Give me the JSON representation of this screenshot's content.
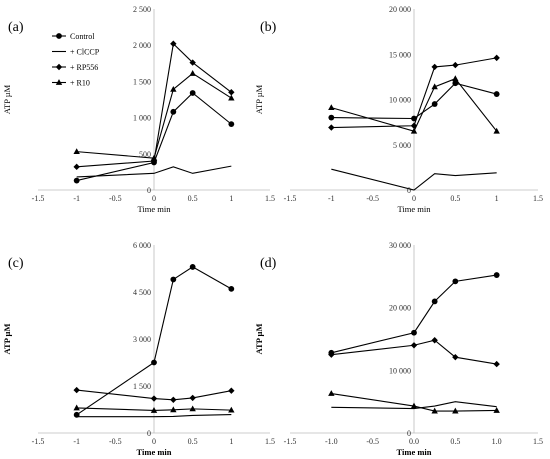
{
  "chart_data": [
    {
      "type": "line",
      "panel_label": "(a)",
      "xlabel": "Time min",
      "ylabel": "ATP µM",
      "xlim": [
        -1.5,
        1.5
      ],
      "ylim": [
        0,
        2500
      ],
      "xticks": [
        "-1.5",
        "-1",
        "-0.5",
        "0",
        "0.5",
        "1",
        "1.5"
      ],
      "yticks": [
        "0",
        "500",
        "1 000",
        "1 500",
        "2 000",
        "2 500"
      ],
      "legend": {
        "placement": "top-left",
        "entries": [
          "Control",
          "+ ClCCP",
          "+ RP556",
          "+ R10"
        ]
      },
      "series": [
        {
          "name": "Control",
          "marker": "circle",
          "x": [
            -1,
            0,
            0.25,
            0.5,
            1
          ],
          "values": [
            130,
            380,
            1080,
            1340,
            910
          ]
        },
        {
          "name": "+ ClCCP",
          "marker": "none",
          "x": [
            -1,
            0,
            0.25,
            0.5,
            1
          ],
          "values": [
            180,
            230,
            320,
            230,
            330
          ]
        },
        {
          "name": "+ RP556",
          "marker": "diamond",
          "x": [
            -1,
            0,
            0.25,
            0.5,
            1
          ],
          "values": [
            320,
            400,
            2020,
            1760,
            1350
          ]
        },
        {
          "name": "+ R10",
          "marker": "triangle",
          "x": [
            -1,
            0,
            0.25,
            0.5,
            1
          ],
          "values": [
            530,
            440,
            1390,
            1610,
            1270
          ]
        }
      ]
    },
    {
      "type": "line",
      "panel_label": "(b)",
      "xlabel": "Time min",
      "ylabel": "ATP µM",
      "xlim": [
        -1.5,
        1.5
      ],
      "ylim": [
        0,
        20000
      ],
      "xticks": [
        "-1.5",
        "-1",
        "-0.5",
        "0",
        "0.5",
        "1",
        "1.5"
      ],
      "yticks": [
        "0",
        "5 000",
        "10 000",
        "15 000",
        "20 000"
      ],
      "series": [
        {
          "name": "Control",
          "marker": "circle",
          "x": [
            -1,
            0,
            0.25,
            0.5,
            1
          ],
          "values": [
            8000,
            7900,
            9500,
            11800,
            10600
          ]
        },
        {
          "name": "+ ClCCP",
          "marker": "none",
          "x": [
            -1,
            0,
            0.25,
            0.5,
            1
          ],
          "values": [
            2300,
            0,
            1800,
            1600,
            1900
          ]
        },
        {
          "name": "+ RP556",
          "marker": "diamond",
          "x": [
            -1,
            0,
            0.25,
            0.5,
            1
          ],
          "values": [
            6900,
            7100,
            13600,
            13800,
            14600
          ]
        },
        {
          "name": "+ R10",
          "marker": "triangle",
          "x": [
            -1,
            0,
            0.25,
            0.5,
            1
          ],
          "values": [
            9100,
            6500,
            11400,
            12300,
            6500
          ]
        }
      ]
    },
    {
      "type": "line",
      "panel_label": "(c)",
      "xlabel": "Time min",
      "ylabel": "ATP µM",
      "xlim": [
        -1.5,
        1.5
      ],
      "ylim": [
        0,
        6000
      ],
      "xticks": [
        "-1.5",
        "-1",
        "-0.5",
        "0",
        "0.5",
        "1",
        "1.5"
      ],
      "yticks": [
        "0",
        "1 500",
        "3 000",
        "4 500",
        "6 000"
      ],
      "series": [
        {
          "name": "Control",
          "marker": "circle",
          "x": [
            -1,
            0,
            0.25,
            0.5,
            1
          ],
          "values": [
            580,
            2250,
            4900,
            5300,
            4600
          ]
        },
        {
          "name": "+ ClCCP",
          "marker": "none",
          "x": [
            -1,
            0,
            0.25,
            0.5,
            1
          ],
          "values": [
            520,
            520,
            530,
            560,
            590
          ]
        },
        {
          "name": "+ RP556",
          "marker": "diamond",
          "x": [
            -1,
            0,
            0.25,
            0.5,
            1
          ],
          "values": [
            1370,
            1100,
            1060,
            1120,
            1350
          ]
        },
        {
          "name": "+ R10",
          "marker": "triangle",
          "x": [
            -1,
            0,
            0.25,
            0.5,
            1
          ],
          "values": [
            800,
            720,
            740,
            770,
            730
          ]
        }
      ]
    },
    {
      "type": "line",
      "panel_label": "(d)",
      "xlabel": "Time min",
      "ylabel": "ATP µM",
      "xlim": [
        -1.5,
        1.5
      ],
      "ylim": [
        0,
        30000
      ],
      "xticks": [
        "-1.5",
        "-1.0",
        "-0.5",
        "0.0",
        "0.5",
        "1.0",
        "1.5"
      ],
      "yticks": [
        "0",
        "10 000",
        "20 000",
        "30 000"
      ],
      "series": [
        {
          "name": "Control",
          "marker": "circle",
          "x": [
            -1,
            0,
            0.25,
            0.5,
            1
          ],
          "values": [
            12800,
            16000,
            21000,
            24200,
            25200
          ]
        },
        {
          "name": "+ ClCCP",
          "marker": "none",
          "x": [
            -1,
            0,
            0.25,
            0.5,
            1
          ],
          "values": [
            4100,
            3900,
            4300,
            5000,
            4200
          ]
        },
        {
          "name": "+ RP556",
          "marker": "diamond",
          "x": [
            -1,
            0,
            0.25,
            0.5,
            1
          ],
          "values": [
            12500,
            14000,
            14800,
            12100,
            11000
          ]
        },
        {
          "name": "+ R10",
          "marker": "triangle",
          "x": [
            -1,
            0,
            0.25,
            0.5,
            1
          ],
          "values": [
            6300,
            4300,
            3500,
            3500,
            3600
          ]
        }
      ]
    }
  ]
}
